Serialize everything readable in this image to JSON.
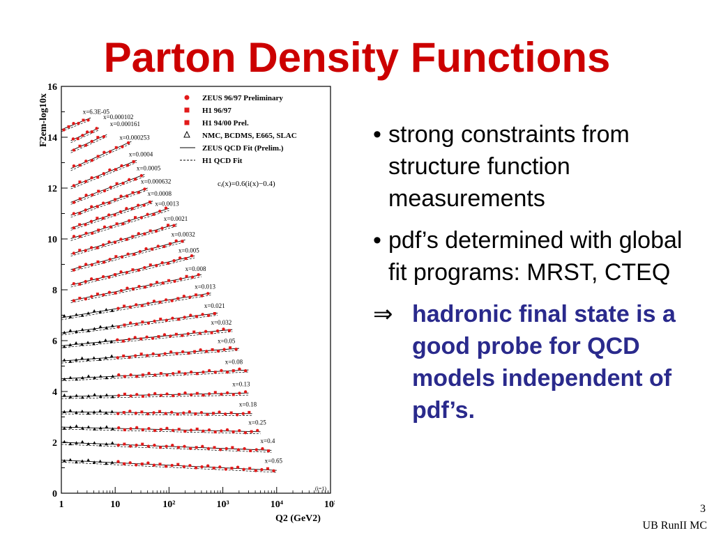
{
  "slide": {
    "title": "Parton Density Functions",
    "page_number": "3",
    "footer": "UB RunII MC"
  },
  "bullets": [
    {
      "marker": "•",
      "text": "strong constraints from structure function measurements"
    },
    {
      "marker": "•",
      "text": "pdf’s determined with global fit programs: MRST, CTEQ"
    }
  ],
  "conclusion": {
    "marker": "⇒",
    "text": "hadronic final state is a good probe for QCD models independent of pdf’s."
  },
  "colors": {
    "title": "#cc0000",
    "conclusion": "#2a2a8c",
    "h1_points": "#e21a1a",
    "fixed_target": "#000000"
  },
  "chart_data": {
    "type": "scatter",
    "ylabel": "F2em-log10x",
    "xlabel": "Q2 (GeV2)",
    "x_scale": "log",
    "xlim": [
      1,
      100000
    ],
    "ylim": [
      0,
      16
    ],
    "yticks": [
      "0",
      "2",
      "4",
      "6",
      "8",
      "10",
      "12",
      "14",
      "16"
    ],
    "xticks": [
      "1",
      "10",
      "10²",
      "10³",
      "10⁴",
      "10⁵"
    ],
    "annotation": "cᵢ(x)=0.6(i(x)−0.4)",
    "corner_note": "(i=1)",
    "legend": {
      "position": "top-right",
      "entries": [
        {
          "marker": "circle",
          "label": "ZEUS 96/97 Preliminary"
        },
        {
          "marker": "square",
          "label": "H1 96/97"
        },
        {
          "marker": "triangle",
          "label": "H1 94/00 Prel."
        },
        {
          "marker": "open-triangle",
          "label": "NMC, BCDMS, E665, SLAC"
        },
        {
          "marker": "solid-line",
          "label": "ZEUS QCD Fit (Prelim.)"
        },
        {
          "marker": "dashed-line",
          "label": "H1 QCD Fit"
        }
      ]
    },
    "series": [
      {
        "name": "x=6.3E-05",
        "y0": 14.3,
        "slope": 0.85,
        "q2_range": [
          1,
          3.5
        ],
        "label_q2": 2.5
      },
      {
        "name": "x=0.000102",
        "y0": 13.7,
        "slope": 0.95,
        "q2_range": [
          1.5,
          5
        ],
        "label_q2": 6
      },
      {
        "name": "x=0.000161",
        "y0": 13.3,
        "slope": 0.95,
        "q2_range": [
          1.5,
          7
        ],
        "label_q2": 8
      },
      {
        "name": "x=0.000253",
        "y0": 12.6,
        "slope": 0.95,
        "q2_range": [
          1.5,
          20
        ],
        "label_q2": 12
      },
      {
        "name": "x=0.0004",
        "y0": 11.9,
        "slope": 0.85,
        "q2_range": [
          1.5,
          25
        ],
        "label_q2": 18
      },
      {
        "name": "x=0.0005",
        "y0": 11.3,
        "slope": 0.8,
        "q2_range": [
          1.5,
          35
        ],
        "label_q2": 25
      },
      {
        "name": "x=0.000632",
        "y0": 10.8,
        "slope": 0.75,
        "q2_range": [
          1.5,
          40
        ],
        "label_q2": 30
      },
      {
        "name": "x=0.0008",
        "y0": 10.3,
        "slope": 0.7,
        "q2_range": [
          1.5,
          50
        ],
        "label_q2": 40
      },
      {
        "name": "x=0.0013",
        "y0": 9.9,
        "slope": 0.65,
        "q2_range": [
          1.5,
          100
        ],
        "label_q2": 55
      },
      {
        "name": "x=0.0021",
        "y0": 9.3,
        "slope": 0.6,
        "q2_range": [
          1.5,
          140
        ],
        "label_q2": 80
      },
      {
        "name": "x=0.0032",
        "y0": 8.7,
        "slope": 0.55,
        "q2_range": [
          1.5,
          200
        ],
        "label_q2": 110
      },
      {
        "name": "x=0.005",
        "y0": 8.1,
        "slope": 0.5,
        "q2_range": [
          1.5,
          300
        ],
        "label_q2": 150
      },
      {
        "name": "x=0.008",
        "y0": 7.5,
        "slope": 0.42,
        "q2_range": [
          1.5,
          400
        ],
        "label_q2": 200
      },
      {
        "name": "x=0.013",
        "y0": 6.9,
        "slope": 0.35,
        "q2_range": [
          1,
          600
        ],
        "label_q2": 300
      },
      {
        "name": "x=0.021",
        "y0": 6.3,
        "slope": 0.27,
        "q2_range": [
          1,
          800
        ],
        "label_q2": 450
      },
      {
        "name": "x=0.032",
        "y0": 5.8,
        "slope": 0.2,
        "q2_range": [
          1,
          1500
        ],
        "label_q2": 600
      },
      {
        "name": "x=0.05",
        "y0": 5.2,
        "slope": 0.15,
        "q2_range": [
          1,
          2000
        ],
        "label_q2": 800
      },
      {
        "name": "x=0.08",
        "y0": 4.5,
        "slope": 0.1,
        "q2_range": [
          1,
          3000
        ],
        "label_q2": 1100
      },
      {
        "name": "x=0.13",
        "y0": 3.8,
        "slope": 0.04,
        "q2_range": [
          1,
          3000
        ],
        "label_q2": 1500
      },
      {
        "name": "x=0.18",
        "y0": 3.2,
        "slope": -0.02,
        "q2_range": [
          1,
          3500
        ],
        "label_q2": 2000
      },
      {
        "name": "x=0.25",
        "y0": 2.6,
        "slope": -0.05,
        "q2_range": [
          1,
          5000
        ],
        "label_q2": 3000
      },
      {
        "name": "x=0.4",
        "y0": 2.0,
        "slope": -0.08,
        "q2_range": [
          1,
          8000
        ],
        "label_q2": 5000
      },
      {
        "name": "x=0.65",
        "y0": 1.3,
        "slope": -0.1,
        "q2_range": [
          1,
          10000
        ],
        "label_q2": 6000
      }
    ]
  }
}
